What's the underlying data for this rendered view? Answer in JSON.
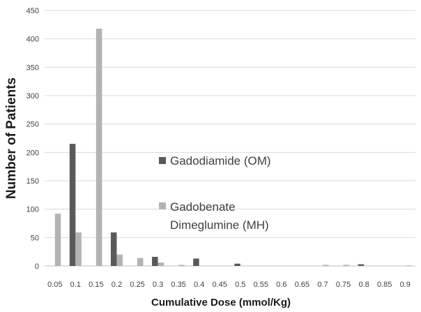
{
  "chart_data": {
    "type": "bar",
    "title": "",
    "xlabel": "Cumulative Dose (mmol/Kg)",
    "ylabel": "Number of Patients",
    "ylim": [
      0,
      450
    ],
    "yticks": [
      "0",
      "50",
      "100",
      "150",
      "200",
      "250",
      "300",
      "350",
      "400",
      "450"
    ],
    "categories": [
      "0.05",
      "0.1",
      "0.15",
      "0.2",
      "0.25",
      "0.3",
      "0.35",
      "0.4",
      "0.45",
      "0.5",
      "0.55",
      "0.6",
      "0.65",
      "0.7",
      "0.75",
      "0.8",
      "0.85",
      "0.9"
    ],
    "grid": true,
    "legend_position": "center",
    "series": [
      {
        "name": "Gadodiamide (OM)",
        "color": "#595959",
        "values": [
          0,
          215,
          0,
          59,
          0,
          16,
          0,
          13,
          0,
          4,
          0,
          0,
          0,
          0,
          0,
          3,
          0,
          0
        ]
      },
      {
        "name": "Gadobenate Dimeglumine (MH)",
        "name_lines": [
          "Gadobenate",
          "Dimeglumine (MH)"
        ],
        "color": "#b3b3b3",
        "values": [
          92,
          59,
          418,
          20,
          14,
          6,
          2,
          0,
          0,
          0,
          0,
          0,
          0,
          2,
          2,
          0,
          0,
          1
        ]
      }
    ]
  }
}
